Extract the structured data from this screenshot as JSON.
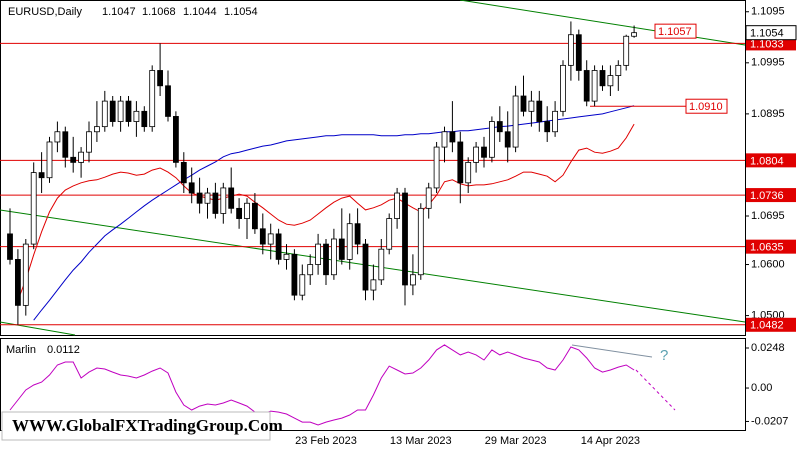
{
  "chart_data": [
    {
      "type": "candlestick",
      "title": "EURUSD,Daily",
      "categories": [
        null,
        null,
        null,
        null,
        null,
        null,
        null,
        null,
        null,
        null,
        null,
        null,
        null,
        null,
        null,
        null,
        null,
        null,
        null,
        null,
        null,
        null,
        null,
        null,
        null,
        null,
        null,
        null,
        null,
        null,
        null,
        null,
        null,
        null,
        null,
        null,
        null,
        null,
        null,
        null,
        "23 Feb 2023",
        null,
        null,
        null,
        null,
        null,
        null,
        null,
        null,
        null,
        null,
        null,
        "13 Mar 2023",
        null,
        null,
        null,
        null,
        null,
        null,
        null,
        null,
        null,
        null,
        null,
        "29 Mar 2023",
        null,
        null,
        null,
        null,
        null,
        null,
        null,
        null,
        null,
        null,
        null,
        "14 Apr 2023",
        null,
        null,
        null
      ],
      "open": [
        1.066,
        1.061,
        1.052,
        1.064,
        1.078,
        1.077,
        1.084,
        1.086,
        1.081,
        1.08,
        1.082,
        1.086,
        1.087,
        1.092,
        1.088,
        1.092,
        1.088,
        1.09,
        1.087,
        1.098,
        1.095,
        1.089,
        1.08,
        1.076,
        1.074,
        1.072,
        1.074,
        1.07,
        1.075,
        1.071,
        1.069,
        1.072,
        1.067,
        1.064,
        1.066,
        1.061,
        1.062,
        1.054,
        1.058,
        1.06,
        1.064,
        1.058,
        1.065,
        1.061,
        1.068,
        1.064,
        1.055,
        1.057,
        1.063,
        1.069,
        1.074,
        1.056,
        1.058,
        1.071,
        1.075,
        1.083,
        1.086,
        1.084,
        1.076,
        1.08,
        1.083,
        1.081,
        1.088,
        1.086,
        1.083,
        1.093,
        1.09,
        1.092,
        1.088,
        1.086,
        1.09,
        1.099,
        1.105,
        1.098,
        1.092,
        1.098,
        1.095,
        1.097,
        1.099,
        1.1047
      ],
      "high": [
        1.071,
        1.063,
        1.065,
        1.08,
        1.082,
        1.085,
        1.088,
        1.087,
        1.085,
        1.083,
        1.088,
        1.092,
        1.094,
        1.093,
        1.093,
        1.093,
        1.092,
        1.091,
        1.099,
        1.1033,
        1.098,
        1.09,
        1.082,
        1.079,
        1.077,
        1.075,
        1.076,
        1.076,
        1.079,
        1.073,
        1.073,
        1.074,
        1.07,
        1.068,
        1.067,
        1.064,
        1.063,
        1.06,
        1.062,
        1.066,
        1.065,
        1.067,
        1.071,
        1.07,
        1.071,
        1.065,
        1.06,
        1.065,
        1.07,
        1.075,
        1.075,
        1.062,
        1.072,
        1.076,
        1.084,
        1.087,
        1.092,
        1.086,
        1.081,
        1.084,
        1.085,
        1.089,
        1.091,
        1.09,
        1.095,
        1.097,
        1.094,
        1.094,
        1.091,
        1.092,
        1.1,
        1.1076,
        1.106,
        1.1,
        1.099,
        1.099,
        1.099,
        1.1,
        1.105,
        1.1068
      ],
      "low": [
        1.06,
        1.0482,
        1.05,
        1.063,
        1.074,
        1.076,
        1.082,
        1.079,
        1.078,
        1.077,
        1.08,
        1.084,
        1.086,
        1.087,
        1.086,
        1.087,
        1.085,
        1.086,
        1.086,
        1.093,
        1.088,
        1.079,
        1.074,
        1.072,
        1.07,
        1.069,
        1.069,
        1.068,
        1.07,
        1.067,
        1.065,
        1.066,
        1.062,
        1.061,
        1.06,
        1.059,
        1.053,
        1.053,
        1.056,
        1.058,
        1.056,
        1.057,
        1.06,
        1.059,
        1.062,
        1.053,
        1.053,
        1.056,
        1.062,
        1.067,
        1.052,
        1.054,
        1.057,
        1.069,
        1.074,
        1.08,
        1.082,
        1.072,
        1.074,
        1.078,
        1.079,
        1.08,
        1.084,
        1.08,
        1.082,
        1.089,
        1.087,
        1.086,
        1.084,
        1.085,
        1.089,
        1.096,
        1.096,
        1.091,
        1.091,
        1.094,
        1.093,
        1.094,
        1.098,
        1.1044
      ],
      "close": [
        1.061,
        1.052,
        1.064,
        1.078,
        1.077,
        1.084,
        1.086,
        1.081,
        1.08,
        1.082,
        1.086,
        1.087,
        1.092,
        1.088,
        1.092,
        1.088,
        1.09,
        1.087,
        1.098,
        1.095,
        1.089,
        1.08,
        1.076,
        1.074,
        1.072,
        1.074,
        1.07,
        1.075,
        1.071,
        1.069,
        1.072,
        1.067,
        1.064,
        1.066,
        1.061,
        1.062,
        1.054,
        1.058,
        1.06,
        1.064,
        1.058,
        1.065,
        1.061,
        1.068,
        1.064,
        1.055,
        1.057,
        1.063,
        1.069,
        1.074,
        1.056,
        1.058,
        1.071,
        1.075,
        1.083,
        1.086,
        1.084,
        1.076,
        1.08,
        1.083,
        1.081,
        1.088,
        1.086,
        1.083,
        1.093,
        1.09,
        1.092,
        1.088,
        1.086,
        1.09,
        1.099,
        1.105,
        1.098,
        1.092,
        1.098,
        1.095,
        1.097,
        1.099,
        1.1047,
        1.1054
      ],
      "up_color": "#ffffff",
      "down_color": "#000000",
      "lines": [
        {
          "color": "#0000c8",
          "values": [
            null,
            null,
            null,
            1.0491,
            1.0511,
            1.053,
            1.055,
            1.057,
            1.0589,
            1.0605,
            1.0624,
            1.064,
            1.0656,
            1.0668,
            1.0679,
            1.0691,
            1.0703,
            1.0715,
            1.0726,
            1.0736,
            1.0746,
            1.0756,
            1.0766,
            1.0775,
            1.0785,
            1.0793,
            1.0801,
            1.0811,
            1.0817,
            1.082,
            1.0824,
            1.0828,
            1.0832,
            1.0834,
            1.0838,
            1.0842,
            1.0844,
            1.0846,
            1.0848,
            1.085,
            1.0852,
            1.0852,
            1.0854,
            1.0854,
            1.0854,
            1.0854,
            1.0854,
            1.0852,
            1.0852,
            1.0852,
            1.0854,
            1.0854,
            1.0856,
            1.0856,
            1.0858,
            1.086,
            1.086,
            1.0862,
            1.0862,
            1.0864,
            1.0866,
            1.0868,
            1.087,
            1.0871,
            1.0873,
            1.0875,
            1.0877,
            1.0879,
            1.0881,
            1.0883,
            1.0885,
            1.0887,
            1.0889,
            1.0891,
            1.0893,
            1.0895,
            1.0899,
            1.0903,
            1.0907,
            1.0911
          ]
        },
        {
          "color": "#e00000",
          "values": [
            null,
            1.053,
            1.057,
            1.0619,
            1.0664,
            1.0703,
            1.073,
            1.0746,
            1.0754,
            1.076,
            1.0764,
            1.0766,
            1.0771,
            1.0777,
            1.0781,
            1.0779,
            1.0775,
            1.0777,
            1.0785,
            1.0789,
            1.0781,
            1.077,
            1.0754,
            1.074,
            1.0734,
            1.073,
            1.0726,
            1.073,
            1.0734,
            1.0738,
            1.0734,
            1.0722,
            1.0711,
            1.0699,
            1.0687,
            1.0679,
            1.0677,
            1.0681,
            1.0687,
            1.0699,
            1.0711,
            1.0722,
            1.073,
            1.0734,
            1.072,
            1.0707,
            1.0711,
            1.0717,
            1.0726,
            1.073,
            1.072,
            1.0711,
            1.0703,
            1.0717,
            1.0736,
            1.0762,
            1.0766,
            1.0758,
            1.0754,
            1.0756,
            1.0756,
            1.0758,
            1.0762,
            1.0766,
            1.0773,
            1.0781,
            1.0781,
            1.0777,
            1.0773,
            1.0762,
            1.0775,
            1.0801,
            1.0824,
            1.0828,
            1.082,
            1.0818,
            1.0822,
            1.0828,
            1.0848,
            1.0875
          ]
        }
      ],
      "ylim": [
        1.0462,
        1.1118
      ],
      "yticks": [
        1.1095,
        1.0995,
        1.0895,
        1.0695,
        {
          "value": 1.06,
          "label": "1.0600"
        },
        {
          "value": 1.05,
          "label": "1.0500"
        }
      ],
      "levels": [
        1.1033,
        1.0804,
        1.0736,
        1.0635,
        1.0482
      ],
      "level_color": "#e00000",
      "markers": [
        1.1057,
        {
          "value": 1.091,
          "label": "1.0910"
        }
      ]
    },
    {
      "type": "line",
      "title": "Marlin",
      "color": "#c000c0",
      "values": [
        -0.0136,
        -0.0074,
        -0.0012,
        0.0019,
        0.0037,
        0.0081,
        0.0143,
        0.0161,
        0.0161,
        0.0062,
        0.0099,
        0.0124,
        0.0118,
        0.0099,
        0.0081,
        0.0074,
        0.0062,
        0.0081,
        0.0105,
        0.0124,
        0.0093,
        -0.0025,
        -0.0105,
        -0.0136,
        -0.0112,
        -0.0099,
        -0.0105,
        -0.0093,
        -0.0074,
        -0.0093,
        -0.0112,
        -0.0149,
        -0.0161,
        -0.0143,
        -0.0149,
        -0.0161,
        -0.0186,
        -0.0211,
        -0.0211,
        -0.0229,
        -0.0211,
        -0.0198,
        -0.0186,
        -0.0167,
        -0.0136,
        -0.0136,
        -0.0043,
        0.0062,
        0.0136,
        0.0112,
        0.0087,
        0.0093,
        0.0124,
        0.0174,
        0.0236,
        0.0267,
        0.0236,
        0.0205,
        0.0223,
        0.0205,
        0.0174,
        0.0236,
        0.0205,
        0.0223,
        0.0205,
        0.0186,
        0.0174,
        0.0161,
        0.0124,
        0.0112,
        0.0174,
        0.0254,
        0.0236,
        0.0186,
        0.0124,
        0.0099,
        0.0112,
        0.013,
        0.0143,
        0.0112
      ],
      "ylim": [
        -0.026,
        0.031
      ],
      "yticks": [
        0.0248,
        {
          "value": 0,
          "label": "0.00"
        },
        -0.0207
      ],
      "annotation": "?"
    }
  ],
  "watermark": "WWW.GlobalFXTradingGroup.Com"
}
